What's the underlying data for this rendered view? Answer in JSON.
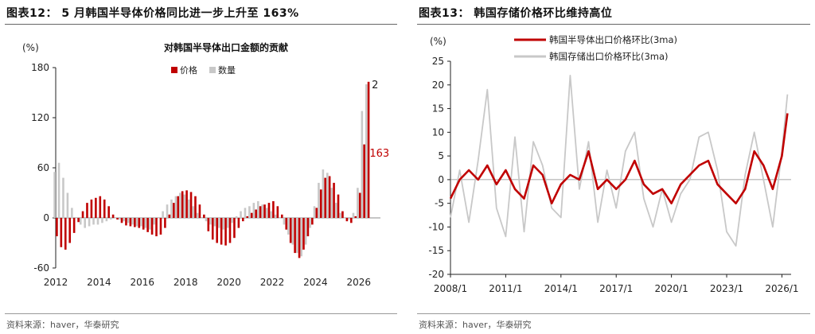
{
  "source": "资料来源：haver，华泰研究",
  "figures": [
    {
      "id": "left",
      "title": "图表12：  5 月韩国半导体价格同比进一步上升至 163%"
    },
    {
      "id": "right",
      "title": "图表13：  韩国存储价格环比维持高位"
    }
  ],
  "colors": {
    "red": "#c00000",
    "gray": "#c8c8c8",
    "axis": "#222222"
  },
  "chart_data": [
    {
      "type": "bar",
      "title": "对韩国半导体出口金额的贡献",
      "ylabel": "(%)",
      "ylim": [
        -60,
        180
      ],
      "yticks": [
        -60,
        0,
        60,
        120,
        180
      ],
      "xlim": [
        2012,
        2027
      ],
      "xticks": [
        2012,
        2014,
        2016,
        2018,
        2020,
        2022,
        2024,
        2026
      ],
      "legend_position": "top-center",
      "series": [
        {
          "name": "价格",
          "color": "#c00000",
          "x": [
            2012.0,
            2012.2,
            2012.4,
            2012.6,
            2012.8,
            2013.0,
            2013.2,
            2013.4,
            2013.6,
            2013.8,
            2014.0,
            2014.2,
            2014.4,
            2014.6,
            2014.8,
            2015.0,
            2015.2,
            2015.4,
            2015.6,
            2015.8,
            2016.0,
            2016.2,
            2016.4,
            2016.6,
            2016.8,
            2017.0,
            2017.2,
            2017.4,
            2017.6,
            2017.8,
            2018.0,
            2018.2,
            2018.4,
            2018.6,
            2018.8,
            2019.0,
            2019.2,
            2019.4,
            2019.6,
            2019.8,
            2020.0,
            2020.2,
            2020.4,
            2020.6,
            2020.8,
            2021.0,
            2021.2,
            2021.4,
            2021.6,
            2021.8,
            2022.0,
            2022.2,
            2022.4,
            2022.6,
            2022.8,
            2023.0,
            2023.2,
            2023.4,
            2023.6,
            2023.8,
            2024.0,
            2024.2,
            2024.4,
            2024.6,
            2024.8,
            2025.0,
            2025.2,
            2025.4,
            2025.6,
            2025.8,
            2026.0,
            2026.2,
            2026.4
          ],
          "values": [
            -22,
            -35,
            -38,
            -30,
            -18,
            -5,
            8,
            18,
            22,
            24,
            26,
            22,
            14,
            4,
            -2,
            -6,
            -9,
            -10,
            -11,
            -12,
            -14,
            -17,
            -20,
            -22,
            -20,
            -12,
            4,
            18,
            26,
            32,
            33,
            31,
            26,
            16,
            4,
            -16,
            -26,
            -30,
            -32,
            -33,
            -30,
            -24,
            -12,
            -4,
            2,
            6,
            10,
            14,
            16,
            18,
            20,
            14,
            4,
            -14,
            -30,
            -42,
            -48,
            -38,
            -22,
            -8,
            12,
            34,
            48,
            50,
            42,
            28,
            8,
            -4,
            -6,
            2,
            30,
            88,
            163
          ]
        },
        {
          "name": "数量",
          "color": "#c8c8c8",
          "x": [
            2012.0,
            2012.2,
            2012.4,
            2012.6,
            2012.8,
            2013.0,
            2013.2,
            2013.4,
            2013.6,
            2013.8,
            2014.0,
            2014.2,
            2014.4,
            2014.6,
            2014.8,
            2015.0,
            2015.2,
            2015.4,
            2015.6,
            2015.8,
            2016.0,
            2016.2,
            2016.4,
            2016.6,
            2016.8,
            2017.0,
            2017.2,
            2017.4,
            2017.6,
            2017.8,
            2018.0,
            2018.2,
            2018.4,
            2018.6,
            2018.8,
            2019.0,
            2019.2,
            2019.4,
            2019.6,
            2019.8,
            2020.0,
            2020.2,
            2020.4,
            2020.6,
            2020.8,
            2021.0,
            2021.2,
            2021.4,
            2021.6,
            2021.8,
            2022.0,
            2022.2,
            2022.4,
            2022.6,
            2022.8,
            2023.0,
            2023.2,
            2023.4,
            2023.6,
            2023.8,
            2024.0,
            2024.2,
            2024.4,
            2024.6,
            2024.8,
            2025.0,
            2025.2,
            2025.4,
            2025.6,
            2025.8,
            2026.0,
            2026.2,
            2026.4
          ],
          "values": [
            55,
            66,
            48,
            30,
            12,
            0,
            -8,
            -12,
            -10,
            -8,
            -8,
            -6,
            -4,
            -2,
            0,
            -2,
            -4,
            -6,
            -8,
            -10,
            -10,
            -12,
            -14,
            -8,
            0,
            8,
            16,
            22,
            26,
            30,
            28,
            22,
            14,
            6,
            0,
            -4,
            -8,
            -10,
            -12,
            -14,
            -12,
            -6,
            2,
            8,
            12,
            14,
            18,
            20,
            16,
            12,
            8,
            4,
            0,
            -8,
            -20,
            -32,
            -42,
            -46,
            -32,
            -12,
            14,
            42,
            58,
            54,
            36,
            18,
            6,
            0,
            -2,
            6,
            36,
            128,
            160
          ]
        }
      ],
      "annotations": [
        {
          "text": "2",
          "color": "#222222",
          "x": 2026.6,
          "y": 160
        },
        {
          "text": "163",
          "color": "#c00000",
          "x": 2026.5,
          "y": 78
        }
      ]
    },
    {
      "type": "line",
      "ylabel": "(%)",
      "ylim": [
        -20,
        25
      ],
      "yticks": [
        -20,
        -15,
        -10,
        -5,
        0,
        5,
        10,
        15,
        20,
        25
      ],
      "xlim": [
        2008.0,
        2026.5
      ],
      "xticks": [
        2008,
        2011,
        2014,
        2017,
        2020,
        2023,
        2026
      ],
      "xtick_labels": [
        "2008/1",
        "2011/1",
        "2014/1",
        "2017/1",
        "2020/1",
        "2023/1",
        "2026/1"
      ],
      "legend_position": "top-center",
      "series": [
        {
          "name": "韩国半导体出口价格环比(3ma)",
          "color": "#c00000",
          "x": [
            2008.0,
            2008.5,
            2009.0,
            2009.5,
            2010.0,
            2010.5,
            2011.0,
            2011.5,
            2012.0,
            2012.5,
            2013.0,
            2013.5,
            2014.0,
            2014.5,
            2015.0,
            2015.5,
            2016.0,
            2016.5,
            2017.0,
            2017.5,
            2018.0,
            2018.5,
            2019.0,
            2019.5,
            2020.0,
            2020.5,
            2021.0,
            2021.5,
            2022.0,
            2022.5,
            2023.0,
            2023.5,
            2024.0,
            2024.5,
            2025.0,
            2025.5,
            2026.0,
            2026.3
          ],
          "values": [
            -4,
            0,
            2,
            0,
            3,
            -1,
            2,
            -2,
            -4,
            3,
            1,
            -5,
            -1,
            1,
            0,
            6,
            -2,
            0,
            -2,
            0,
            4,
            -1,
            -3,
            -2,
            -5,
            -1,
            1,
            3,
            4,
            -1,
            -3,
            -5,
            -2,
            6,
            3,
            -2,
            5,
            14
          ]
        },
        {
          "name": "韩国存储出口价格环比(3ma)",
          "color": "#c8c8c8",
          "x": [
            2008.0,
            2008.5,
            2009.0,
            2009.5,
            2010.0,
            2010.5,
            2011.0,
            2011.5,
            2012.0,
            2012.5,
            2013.0,
            2013.5,
            2014.0,
            2014.5,
            2015.0,
            2015.5,
            2016.0,
            2016.5,
            2017.0,
            2017.5,
            2018.0,
            2018.5,
            2019.0,
            2019.5,
            2020.0,
            2020.5,
            2021.0,
            2021.5,
            2022.0,
            2022.5,
            2023.0,
            2023.5,
            2024.0,
            2024.5,
            2025.0,
            2025.5,
            2026.0,
            2026.3
          ],
          "values": [
            -8,
            2,
            -9,
            4,
            19,
            -6,
            -12,
            9,
            -11,
            8,
            3,
            -6,
            -8,
            22,
            -2,
            8,
            -9,
            2,
            -6,
            6,
            10,
            -4,
            -10,
            -2,
            -9,
            -3,
            0,
            9,
            10,
            2,
            -11,
            -14,
            1,
            10,
            0,
            -10,
            6,
            18
          ]
        }
      ]
    }
  ]
}
